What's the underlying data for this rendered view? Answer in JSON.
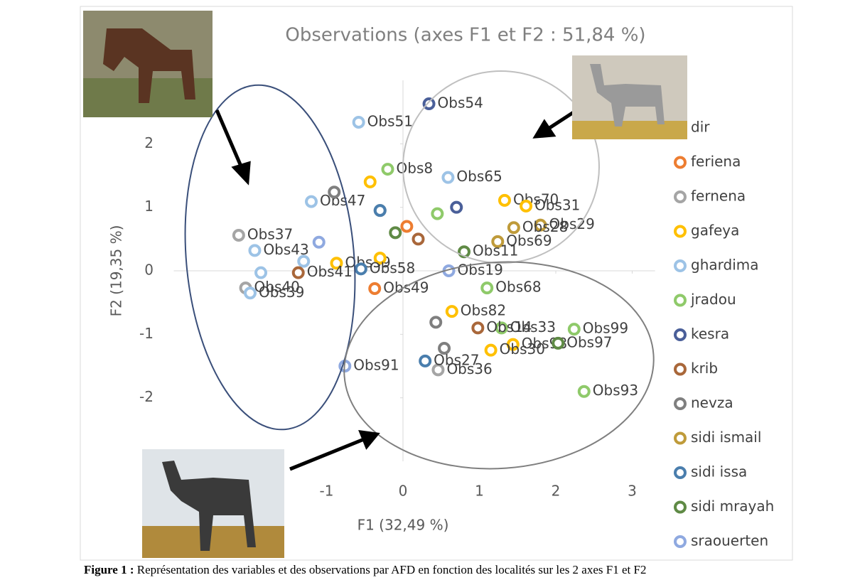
{
  "chart_data": {
    "type": "scatter",
    "title": "Observations (axes F1 et F2 : 51,84 %)",
    "x_label": "F1 (32,49 %)",
    "y_label": "F2 (19,35 %)",
    "xlim": [
      -3,
      3.3
    ],
    "ylim": [
      -3,
      3
    ],
    "xticks": [
      -1,
      0,
      1,
      2,
      3
    ],
    "yticks": [
      -2,
      -1,
      0,
      1,
      2
    ],
    "series": [
      {
        "name": "dir",
        "color": "#5b9bd5",
        "x": [],
        "values": [],
        "labels": []
      },
      {
        "name": "feriena",
        "color": "#ed7d31",
        "x": [
          -0.37,
          0.05
        ],
        "values": [
          -0.28,
          0.7
        ],
        "labels": [
          "Obs49",
          null
        ]
      },
      {
        "name": "fernena",
        "color": "#a5a5a5",
        "x": [
          -2.15,
          -2.06,
          0.46
        ],
        "values": [
          0.56,
          -0.27,
          -1.56
        ],
        "labels": [
          "Obs37",
          "Obs40",
          "Obs36"
        ]
      },
      {
        "name": "gafeya",
        "color": "#ffc000",
        "x": [
          -0.87,
          0.64,
          1.44,
          -0.43,
          1.33,
          1.15,
          -0.3,
          1.61
        ],
        "values": [
          0.12,
          -0.64,
          -1.16,
          1.4,
          1.11,
          -1.25,
          0.2,
          1.02
        ],
        "labels": [
          "Obs59",
          "Obs82",
          "Obs98",
          null,
          "Obs70",
          "Obs30",
          null,
          "Obs31"
        ]
      },
      {
        "name": "ghardima",
        "color": "#9dc3e6",
        "x": [
          -0.58,
          -1.94,
          -2.0,
          -1.2,
          -1.86,
          -1.3,
          0.59
        ],
        "values": [
          2.34,
          0.32,
          -0.35,
          1.09,
          -0.03,
          0.15,
          1.47
        ],
        "labels": [
          "Obs51",
          "Obs43",
          "Obs39",
          "Obs47",
          null,
          null,
          "Obs65"
        ]
      },
      {
        "name": "jradou",
        "color": "#8fca6a",
        "x": [
          -0.2,
          1.1,
          1.29,
          2.24,
          2.37,
          0.45
        ],
        "values": [
          1.6,
          -0.27,
          -0.9,
          -0.92,
          -1.9,
          0.9
        ],
        "labels": [
          "Obs8",
          "Obs68",
          "Obs33",
          "Obs99",
          "Obs93",
          null
        ]
      },
      {
        "name": "kesra",
        "color": "#4a5f99",
        "x": [
          0.34,
          0.7
        ],
        "values": [
          2.63,
          1.0
        ],
        "labels": [
          "Obs54",
          null
        ]
      },
      {
        "name": "krib",
        "color": "#a9673a",
        "x": [
          -1.37,
          0.98,
          0.2
        ],
        "values": [
          -0.03,
          -0.9,
          0.5
        ],
        "labels": [
          "Obs41",
          "Obs14",
          null
        ]
      },
      {
        "name": "nevza",
        "color": "#7f7f7f",
        "x": [
          -0.9,
          0.43,
          0.54,
          -0.3
        ],
        "values": [
          1.24,
          -0.81,
          -1.22,
          0.95
        ],
        "labels": [
          null,
          null,
          null,
          null
        ]
      },
      {
        "name": "sidi ismail",
        "color": "#bf9b3a",
        "x": [
          1.8,
          1.24,
          1.45
        ],
        "values": [
          0.72,
          0.46,
          0.68
        ],
        "labels": [
          "Obs29",
          "Obs69",
          "Obs28"
        ]
      },
      {
        "name": "sidi issa",
        "color": "#4a7ead",
        "x": [
          -0.55,
          0.29,
          -0.3
        ],
        "values": [
          0.03,
          -1.42,
          0.95
        ],
        "labels": [
          "Obs58",
          "Obs27",
          null
        ]
      },
      {
        "name": "sidi mrayah",
        "color": "#5f8a45",
        "x": [
          2.03,
          0.8,
          -0.1
        ],
        "values": [
          -1.14,
          0.3,
          0.6
        ],
        "labels": [
          "Obs97",
          "Obs11",
          null
        ]
      },
      {
        "name": "sraouerten",
        "color": "#8fa9e0",
        "x": [
          -0.76,
          -1.1,
          0.6
        ],
        "values": [
          -1.5,
          0.45,
          0.0
        ],
        "labels": [
          "Obs91",
          null,
          "Obs19"
        ]
      }
    ]
  },
  "caption": {
    "label": "Figure 1 :",
    "text": " Représentation des variables et des observations par AFD en fonction des localités sur les 2 axes F1 et F2"
  }
}
